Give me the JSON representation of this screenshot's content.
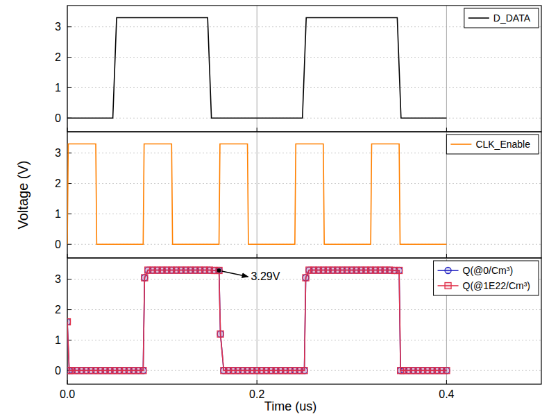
{
  "chart_data": [
    {
      "type": "line",
      "x": [
        0,
        0.048,
        0.052,
        0.148,
        0.152,
        0.248,
        0.252,
        0.348,
        0.352,
        0.4
      ],
      "series": [
        {
          "name": "D_DATA",
          "color": "#000000",
          "line_style": "solid",
          "values": [
            0,
            0,
            3.3,
            3.3,
            0,
            0,
            3.3,
            3.3,
            0,
            0
          ]
        }
      ],
      "xlim": [
        0,
        0.5
      ],
      "xticks": [
        {
          "value": 0,
          "label": "0.0"
        },
        0.2,
        0.4
      ],
      "ylim": [
        -0.45,
        3.7
      ],
      "yticks": [
        0,
        1,
        2,
        3
      ],
      "grid": true,
      "legend": "upper right",
      "tick_labels": "y"
    },
    {
      "type": "line",
      "ylabel": "Voltage (V)",
      "x": [
        0,
        0.001,
        0.03,
        0.031,
        0.08,
        0.081,
        0.11,
        0.111,
        0.16,
        0.161,
        0.19,
        0.191,
        0.24,
        0.241,
        0.27,
        0.271,
        0.32,
        0.321,
        0.35,
        0.351,
        0.4
      ],
      "series": [
        {
          "name": "CLK_Enable",
          "color": "#ff8000",
          "line_style": "solid",
          "values": [
            0,
            3.3,
            3.3,
            0,
            0,
            3.3,
            3.3,
            0,
            0,
            3.3,
            3.3,
            0,
            0,
            3.3,
            3.3,
            0,
            0,
            3.3,
            3.3,
            0,
            0
          ]
        }
      ],
      "xlim": [
        0,
        0.5
      ],
      "xticks": [
        {
          "value": 0,
          "label": "0.0"
        },
        0.2,
        0.4
      ],
      "ylim": [
        -0.45,
        3.7
      ],
      "yticks": [
        0,
        1,
        2,
        3
      ],
      "grid": true,
      "legend": "upper right",
      "tick_labels": "y"
    },
    {
      "type": "line",
      "xlabel": "Time (us)",
      "x": [
        0,
        0.002,
        0.005,
        0.01,
        0.015,
        0.02,
        0.025,
        0.03,
        0.035,
        0.04,
        0.045,
        0.05,
        0.055,
        0.06,
        0.065,
        0.07,
        0.075,
        0.08,
        0.0815,
        0.085,
        0.09,
        0.095,
        0.1,
        0.105,
        0.11,
        0.115,
        0.12,
        0.125,
        0.13,
        0.135,
        0.14,
        0.145,
        0.15,
        0.155,
        0.16,
        0.1615,
        0.165,
        0.17,
        0.175,
        0.18,
        0.185,
        0.19,
        0.195,
        0.2,
        0.205,
        0.21,
        0.215,
        0.22,
        0.225,
        0.23,
        0.235,
        0.24,
        0.245,
        0.25,
        0.2515,
        0.255,
        0.26,
        0.265,
        0.27,
        0.275,
        0.28,
        0.285,
        0.29,
        0.295,
        0.3,
        0.305,
        0.31,
        0.315,
        0.32,
        0.325,
        0.33,
        0.335,
        0.34,
        0.345,
        0.35,
        0.3515,
        0.355,
        0.36,
        0.365,
        0.37,
        0.375,
        0.38,
        0.385,
        0.39,
        0.395,
        0.4
      ],
      "series": [
        {
          "name": "Q(@0/Cm³)",
          "color": "#2020c0",
          "marker": "circle",
          "line_style": "solid",
          "values": [
            1.6,
            0,
            0,
            0,
            0,
            0,
            0,
            0,
            0,
            0,
            0,
            0,
            0,
            0,
            0,
            0,
            0,
            0,
            3.05,
            3.3,
            3.3,
            3.3,
            3.3,
            3.3,
            3.3,
            3.3,
            3.3,
            3.3,
            3.3,
            3.3,
            3.3,
            3.3,
            3.3,
            3.29,
            3.29,
            1.2,
            0,
            0,
            0,
            0,
            0,
            0,
            0,
            0,
            0,
            0,
            0,
            0,
            0,
            0,
            0,
            0,
            0,
            0,
            3.05,
            3.3,
            3.3,
            3.3,
            3.3,
            3.3,
            3.3,
            3.3,
            3.3,
            3.3,
            3.3,
            3.3,
            3.3,
            3.3,
            3.3,
            3.3,
            3.3,
            3.3,
            3.3,
            3.29,
            3.29,
            0,
            0,
            0,
            0,
            0,
            0,
            0,
            0,
            0,
            0,
            0
          ]
        },
        {
          "name": "Q(@1E22/Cm³)",
          "color": "#e0304a",
          "marker": "square",
          "line_style": "solid",
          "values": [
            1.6,
            0,
            0,
            0,
            0,
            0,
            0,
            0,
            0,
            0,
            0,
            0,
            0,
            0,
            0,
            0,
            0,
            0,
            3.05,
            3.3,
            3.3,
            3.3,
            3.3,
            3.3,
            3.3,
            3.3,
            3.3,
            3.3,
            3.3,
            3.3,
            3.3,
            3.3,
            3.3,
            3.29,
            3.29,
            1.2,
            0,
            0,
            0,
            0,
            0,
            0,
            0,
            0,
            0,
            0,
            0,
            0,
            0,
            0,
            0,
            0,
            0,
            0,
            3.05,
            3.3,
            3.3,
            3.3,
            3.3,
            3.3,
            3.3,
            3.3,
            3.3,
            3.3,
            3.3,
            3.3,
            3.3,
            3.3,
            3.3,
            3.3,
            3.3,
            3.3,
            3.3,
            3.29,
            3.29,
            0,
            0,
            0,
            0,
            0,
            0,
            0,
            0,
            0,
            0,
            0
          ]
        }
      ],
      "annotations": [
        {
          "text": "3.29V",
          "x": 0.16,
          "y": 3.29
        }
      ],
      "xlim": [
        0,
        0.5
      ],
      "xticks": [
        {
          "value": 0,
          "label": "0.0"
        },
        0.2,
        0.4
      ],
      "ylim": [
        -0.45,
        3.7
      ],
      "yticks": [
        0,
        1,
        2,
        3
      ],
      "grid": true,
      "legend": "upper right"
    }
  ]
}
